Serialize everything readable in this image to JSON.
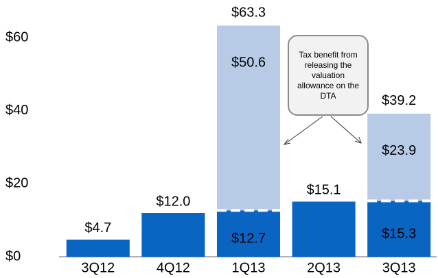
{
  "chart_data": {
    "type": "stacked-bar",
    "categories": [
      "3Q12",
      "4Q12",
      "1Q13",
      "2Q13",
      "3Q13"
    ],
    "series": [
      {
        "color": "#0a64c2",
        "values": [
          4.7,
          12.0,
          12.7,
          15.1,
          15.3
        ],
        "value_labels": [
          "$4.7",
          "$12.0",
          "$12.7",
          "$15.1",
          "$15.3"
        ]
      },
      {
        "color": "#b7cbe6",
        "values": [
          null,
          null,
          50.6,
          null,
          23.9
        ],
        "value_labels": [
          null,
          null,
          "$50.6",
          null,
          "$23.9"
        ]
      }
    ],
    "totals": [
      null,
      null,
      63.3,
      null,
      39.2
    ],
    "total_labels": [
      null,
      null,
      "$63.3",
      null,
      "$39.2"
    ],
    "annotation": "Tax benefit from releasing the valuation allowance on the DTA",
    "ylim": [
      0,
      66
    ],
    "yticks": [
      {
        "value": 0,
        "label": "$0"
      },
      {
        "value": 20,
        "label": "$20"
      },
      {
        "value": 40,
        "label": "$40"
      },
      {
        "value": 60,
        "label": "$60"
      }
    ],
    "grid": false
  }
}
